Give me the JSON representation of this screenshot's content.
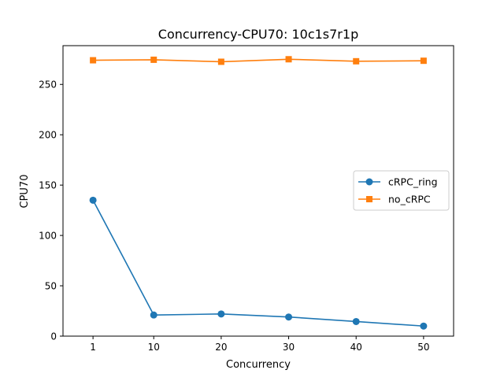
{
  "chart_data": {
    "type": "line",
    "title": "Concurrency-CPU70: 10c1s7r1p",
    "xlabel": "Concurrency",
    "ylabel": "CPU70",
    "x": [
      1,
      10,
      20,
      30,
      40,
      50
    ],
    "x_tick_labels": [
      "1",
      "10",
      "20",
      "30",
      "40",
      "50"
    ],
    "xlim": [
      -3.45,
      54.45
    ],
    "ylim": [
      0,
      288.5
    ],
    "y_ticks": [
      0,
      50,
      100,
      150,
      200,
      250
    ],
    "y_tick_labels": [
      "0",
      "50",
      "100",
      "150",
      "200",
      "250"
    ],
    "grid": false,
    "legend_position": "center-right",
    "series": [
      {
        "name": "cRPC_ring",
        "values": [
          135,
          21,
          22,
          19,
          14.5,
          10
        ],
        "color": "#1f77b4",
        "marker": "circle"
      },
      {
        "name": "no_cRPC",
        "values": [
          274,
          274.5,
          272.5,
          275,
          273,
          273.5
        ],
        "color": "#ff7f0e",
        "marker": "square"
      }
    ]
  }
}
